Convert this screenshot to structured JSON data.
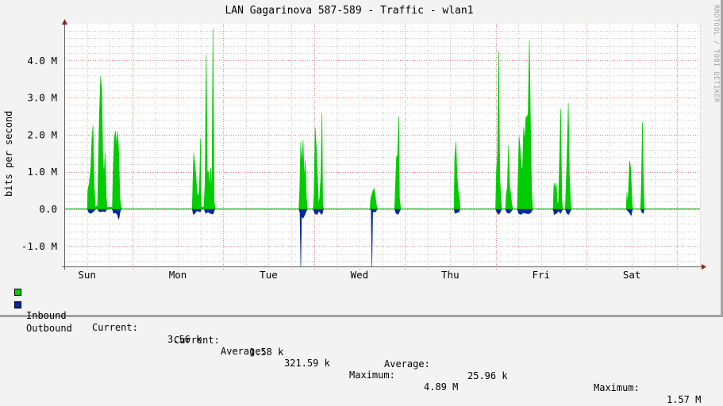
{
  "title": "LAN Gagarinova 587-589 - Traffic - wlan1",
  "watermark": "RRDTOOL / TOBI OETIKER",
  "colors": {
    "inbound": "#00cc00",
    "outbound": "#002a97",
    "zero_line": "#00a000",
    "major_grid": "#e08080",
    "minor_grid": "#c8c8c8",
    "axis": "#606060",
    "arrow": "#902020",
    "plot_bg": "#ffffff",
    "canvas_bg": "#f3f3f3"
  },
  "legend": {
    "inbound": {
      "label": "Inbound",
      "current_label": "Current:",
      "current": "3.56 k",
      "average_label": "Average:",
      "average": "321.59 k",
      "maximum_label": "Maximum:",
      "maximum": "4.89 M"
    },
    "outbound": {
      "label": "Outbound",
      "current_label": "Current:",
      "current": "1.58 k",
      "average_label": "Average:",
      "average": "25.96 k",
      "maximum_label": "Maximum:",
      "maximum": "1.57 M"
    }
  },
  "chart_data": {
    "type": "area",
    "title": "LAN Gagarinova 587-589 - Traffic - wlan1",
    "xlabel": "",
    "ylabel": "bits per second",
    "ylim": [
      -1.57,
      4.9
    ],
    "y_unit": "Mbit/s",
    "y_ticks": [
      {
        "value": 4.0,
        "label": "4.0 M"
      },
      {
        "value": 3.0,
        "label": "3.0 M"
      },
      {
        "value": 2.0,
        "label": "2.0 M"
      },
      {
        "value": 1.0,
        "label": "1.0 M"
      },
      {
        "value": 0.0,
        "label": "0.0"
      },
      {
        "value": -1.0,
        "label": "-1.0 M"
      }
    ],
    "x_ticks": [
      "Sun",
      "Mon",
      "Tue",
      "Wed",
      "Thu",
      "Fri",
      "Sat"
    ],
    "x_unit": "hours since graph start (Sun ~06:00)",
    "x_range_hours": [
      0,
      168
    ],
    "grid": true,
    "legend_position": "bottom",
    "series": [
      {
        "name": "Inbound",
        "color": "#00cc00",
        "points": [
          [
            0,
            0
          ],
          [
            6.1,
            0
          ],
          [
            6.2,
            0.5
          ],
          [
            6.6,
            0.7
          ],
          [
            7.0,
            1.1
          ],
          [
            7.3,
            1.9
          ],
          [
            7.6,
            2.25
          ],
          [
            7.9,
            0.6
          ],
          [
            8.2,
            0.05
          ],
          [
            8.8,
            0.1
          ],
          [
            9.0,
            1.2
          ],
          [
            9.3,
            2.6
          ],
          [
            9.6,
            3.58
          ],
          [
            9.9,
            3.2
          ],
          [
            10.2,
            1.3
          ],
          [
            10.5,
            0.95
          ],
          [
            10.8,
            1.5
          ],
          [
            11.1,
            0.3
          ],
          [
            11.3,
            0.05
          ],
          [
            12.7,
            0.05
          ],
          [
            12.9,
            1.0
          ],
          [
            13.2,
            1.9
          ],
          [
            13.5,
            2.1
          ],
          [
            13.8,
            1.7
          ],
          [
            14.1,
            2.1
          ],
          [
            14.4,
            1.5
          ],
          [
            14.7,
            0.3
          ],
          [
            15.0,
            0.05
          ],
          [
            15.3,
            0
          ],
          [
            33.8,
            0
          ],
          [
            34.0,
            0.8
          ],
          [
            34.2,
            1.5
          ],
          [
            34.5,
            1.2
          ],
          [
            34.8,
            0.9
          ],
          [
            35.1,
            0.4
          ],
          [
            35.4,
            0.35
          ],
          [
            35.7,
            0.5
          ],
          [
            36.0,
            1.9
          ],
          [
            36.2,
            0.05
          ],
          [
            36.9,
            0.05
          ],
          [
            37.2,
            0.7
          ],
          [
            37.5,
            4.15
          ],
          [
            37.8,
            1.0
          ],
          [
            38.1,
            1.0
          ],
          [
            38.4,
            0.6
          ],
          [
            38.7,
            1.1
          ],
          [
            39.0,
            0.4
          ],
          [
            39.3,
            4.87
          ],
          [
            39.6,
            0.2
          ],
          [
            39.9,
            0
          ],
          [
            62.0,
            0
          ],
          [
            62.2,
            0.5
          ],
          [
            62.5,
            1.8
          ],
          [
            62.8,
            1.2
          ],
          [
            63.1,
            1.85
          ],
          [
            63.4,
            0.8
          ],
          [
            63.7,
            1.3
          ],
          [
            64.0,
            0.3
          ],
          [
            64.2,
            0
          ],
          [
            65.8,
            0
          ],
          [
            66.0,
            0.4
          ],
          [
            66.3,
            2.2
          ],
          [
            66.6,
            1.7
          ],
          [
            66.9,
            0.9
          ],
          [
            67.2,
            0.1
          ],
          [
            67.5,
            0.3
          ],
          [
            67.8,
            0.9
          ],
          [
            68.1,
            2.6
          ],
          [
            68.3,
            0.2
          ],
          [
            68.5,
            0
          ],
          [
            80.8,
            0
          ],
          [
            81.0,
            0.3
          ],
          [
            81.3,
            0.4
          ],
          [
            81.6,
            0.5
          ],
          [
            81.9,
            0.55
          ],
          [
            82.2,
            0.35
          ],
          [
            82.5,
            0.1
          ],
          [
            82.8,
            0
          ],
          [
            87.3,
            0
          ],
          [
            87.5,
            0.6
          ],
          [
            87.8,
            1.4
          ],
          [
            88.1,
            1.45
          ],
          [
            88.4,
            2.5
          ],
          [
            88.6,
            0.3
          ],
          [
            88.9,
            0
          ],
          [
            103.0,
            0
          ],
          [
            103.2,
            1.4
          ],
          [
            103.5,
            1.8
          ],
          [
            103.8,
            0.9
          ],
          [
            104.1,
            0.5
          ],
          [
            104.4,
            0.3
          ],
          [
            104.6,
            0
          ],
          [
            114.0,
            0
          ],
          [
            114.2,
            1.0
          ],
          [
            114.5,
            1.5
          ],
          [
            114.8,
            4.25
          ],
          [
            115.1,
            0.8
          ],
          [
            115.4,
            0.3
          ],
          [
            115.6,
            0
          ],
          [
            116.6,
            0
          ],
          [
            116.8,
            0.4
          ],
          [
            117.1,
            0.6
          ],
          [
            117.4,
            1.7
          ],
          [
            117.7,
            0.6
          ],
          [
            118.0,
            0.4
          ],
          [
            118.3,
            0.1
          ],
          [
            118.6,
            0
          ],
          [
            119.7,
            0
          ],
          [
            119.9,
            0.8
          ],
          [
            120.2,
            1.95
          ],
          [
            120.5,
            1.6
          ],
          [
            120.8,
            1.1
          ],
          [
            121.1,
            1.1
          ],
          [
            121.4,
            2.2
          ],
          [
            121.7,
            1.8
          ],
          [
            122.0,
            2.5
          ],
          [
            122.3,
            2.45
          ],
          [
            122.6,
            2.6
          ],
          [
            122.9,
            4.55
          ],
          [
            123.2,
            2.4
          ],
          [
            123.5,
            0.5
          ],
          [
            123.8,
            0
          ],
          [
            129.2,
            0
          ],
          [
            129.4,
            0.7
          ],
          [
            129.7,
            0.55
          ],
          [
            130.0,
            0.7
          ],
          [
            130.3,
            0.1
          ],
          [
            130.6,
            0.2
          ],
          [
            130.9,
            1.4
          ],
          [
            131.2,
            2.7
          ],
          [
            131.5,
            0.2
          ],
          [
            131.8,
            0
          ],
          [
            132.4,
            0
          ],
          [
            132.6,
            0.6
          ],
          [
            132.9,
            1.5
          ],
          [
            133.2,
            2.85
          ],
          [
            133.5,
            0.9
          ],
          [
            133.8,
            0.2
          ],
          [
            134.0,
            0
          ],
          [
            148.5,
            0
          ],
          [
            148.7,
            0.45
          ],
          [
            148.9,
            0.1
          ],
          [
            149.1,
            0.5
          ],
          [
            149.4,
            1.3
          ],
          [
            149.7,
            1.1
          ],
          [
            150.0,
            0.3
          ],
          [
            150.2,
            0
          ],
          [
            152.3,
            0
          ],
          [
            152.5,
            0.6
          ],
          [
            152.8,
            2.35
          ],
          [
            153.1,
            0.5
          ],
          [
            153.3,
            0
          ],
          [
            168,
            0
          ]
        ]
      },
      {
        "name": "Outbound",
        "color": "#002a97",
        "points": [
          [
            0,
            0
          ],
          [
            6.1,
            0
          ],
          [
            6.4,
            -0.08
          ],
          [
            6.8,
            -0.12
          ],
          [
            7.3,
            -0.1
          ],
          [
            7.9,
            -0.05
          ],
          [
            8.2,
            0
          ],
          [
            8.8,
            0
          ],
          [
            9.1,
            -0.06
          ],
          [
            9.6,
            -0.08
          ],
          [
            10.2,
            -0.06
          ],
          [
            10.8,
            -0.08
          ],
          [
            11.3,
            0
          ],
          [
            12.7,
            0
          ],
          [
            13.0,
            -0.12
          ],
          [
            13.5,
            -0.1
          ],
          [
            14.0,
            -0.15
          ],
          [
            14.4,
            -0.28
          ],
          [
            14.7,
            -0.1
          ],
          [
            15.0,
            0
          ],
          [
            33.8,
            0
          ],
          [
            34.1,
            -0.15
          ],
          [
            34.5,
            -0.12
          ],
          [
            35.0,
            -0.05
          ],
          [
            36.0,
            -0.08
          ],
          [
            36.2,
            0
          ],
          [
            36.9,
            0
          ],
          [
            37.4,
            -0.12
          ],
          [
            38.0,
            -0.08
          ],
          [
            38.6,
            -0.12
          ],
          [
            39.3,
            -0.14
          ],
          [
            39.6,
            -0.05
          ],
          [
            39.9,
            0
          ],
          [
            62.0,
            0
          ],
          [
            62.3,
            -0.1
          ],
          [
            62.5,
            -1.57
          ],
          [
            62.7,
            -0.2
          ],
          [
            63.1,
            -0.25
          ],
          [
            63.6,
            -0.15
          ],
          [
            64.2,
            0
          ],
          [
            65.8,
            0
          ],
          [
            66.2,
            -0.12
          ],
          [
            66.8,
            -0.15
          ],
          [
            67.3,
            -0.05
          ],
          [
            67.6,
            -0.1
          ],
          [
            68.1,
            -0.15
          ],
          [
            68.5,
            0
          ],
          [
            80.8,
            0
          ],
          [
            81.1,
            -0.05
          ],
          [
            81.3,
            -1.57
          ],
          [
            81.5,
            -0.08
          ],
          [
            82.2,
            -0.08
          ],
          [
            82.8,
            0
          ],
          [
            87.3,
            0
          ],
          [
            87.7,
            -0.12
          ],
          [
            88.2,
            -0.15
          ],
          [
            88.9,
            0
          ],
          [
            103.0,
            0
          ],
          [
            103.3,
            -0.12
          ],
          [
            103.7,
            -0.1
          ],
          [
            104.3,
            -0.08
          ],
          [
            104.6,
            0
          ],
          [
            114.0,
            0
          ],
          [
            114.4,
            -0.1
          ],
          [
            114.9,
            -0.15
          ],
          [
            115.6,
            0
          ],
          [
            116.6,
            0
          ],
          [
            117.0,
            -0.1
          ],
          [
            117.6,
            -0.12
          ],
          [
            118.6,
            0
          ],
          [
            119.7,
            0
          ],
          [
            120.1,
            -0.12
          ],
          [
            120.7,
            -0.15
          ],
          [
            121.3,
            -0.1
          ],
          [
            122.0,
            -0.12
          ],
          [
            122.7,
            -0.13
          ],
          [
            123.3,
            -0.1
          ],
          [
            123.8,
            0
          ],
          [
            129.2,
            0
          ],
          [
            129.5,
            -0.15
          ],
          [
            130.1,
            -0.12
          ],
          [
            130.6,
            -0.05
          ],
          [
            131.1,
            -0.12
          ],
          [
            131.8,
            0
          ],
          [
            132.4,
            0
          ],
          [
            132.8,
            -0.12
          ],
          [
            133.3,
            -0.15
          ],
          [
            134.0,
            0
          ],
          [
            148.5,
            0
          ],
          [
            148.9,
            -0.05
          ],
          [
            149.5,
            -0.12
          ],
          [
            149.8,
            -0.18
          ],
          [
            150.2,
            0
          ],
          [
            152.3,
            0
          ],
          [
            152.7,
            -0.1
          ],
          [
            153.0,
            -0.12
          ],
          [
            153.3,
            0
          ],
          [
            168,
            0
          ]
        ]
      }
    ]
  }
}
